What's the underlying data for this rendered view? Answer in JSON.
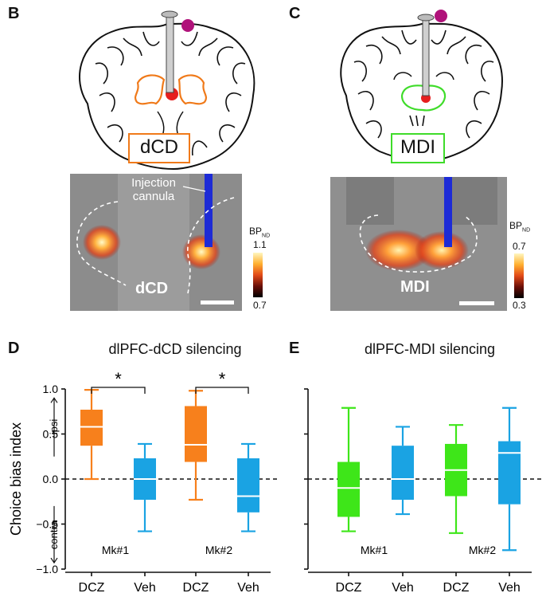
{
  "panels": {
    "B": {
      "letter": "B",
      "region_label": "dCD",
      "annotation": "Injection\ncannula",
      "colorbar": {
        "label": "BP",
        "label_sub": "ND",
        "max": "1.1",
        "min": "0.7"
      },
      "image_region_label": "dCD"
    },
    "C": {
      "letter": "C",
      "region_label": "MDI",
      "colorbar": {
        "label": "BP",
        "label_sub": "ND",
        "max": "0.7",
        "min": "0.3"
      },
      "image_region_label": "MDI"
    },
    "D": {
      "letter": "D",
      "title": "dlPFC-dCD silencing"
    },
    "E": {
      "letter": "E",
      "title": "dlPFC-MDI silencing"
    }
  },
  "colors": {
    "dcd_outline": "#f07a1a",
    "mdi_outline": "#3fdc2a",
    "orange": "#f7801c",
    "blue": "#1aa3e3",
    "green": "#3ee619",
    "cannula_blue": "#1d2bd6",
    "magenta": "#b0127a"
  },
  "chart_data": [
    {
      "type": "box",
      "title": "dlPFC-dCD silencing",
      "ylabel": "Choice bias index",
      "ylim": [
        -1.0,
        1.0
      ],
      "yticks": [
        "1.0",
        "0.5",
        "0.0",
        "−0.5",
        "−1.0"
      ],
      "direction_labels": {
        "up": "ipsi",
        "down": "contra"
      },
      "groups": [
        "Mk#1",
        "Mk#2"
      ],
      "xticklabels": [
        "DCZ",
        "Veh",
        "DCZ",
        "Veh"
      ],
      "significance": [
        "*",
        "*"
      ],
      "boxes": [
        {
          "group": "Mk#1",
          "condition": "DCZ",
          "color": "orange",
          "min": 0.0,
          "q1": 0.37,
          "median": 0.58,
          "q3": 0.77,
          "max": 0.99
        },
        {
          "group": "Mk#1",
          "condition": "Veh",
          "color": "blue",
          "min": -0.58,
          "q1": -0.23,
          "median": 0.0,
          "q3": 0.23,
          "max": 0.39
        },
        {
          "group": "Mk#2",
          "condition": "DCZ",
          "color": "orange",
          "min": -0.23,
          "q1": 0.19,
          "median": 0.38,
          "q3": 0.81,
          "max": 0.98
        },
        {
          "group": "Mk#2",
          "condition": "Veh",
          "color": "blue",
          "min": -0.58,
          "q1": -0.37,
          "median": -0.19,
          "q3": 0.23,
          "max": 0.39
        }
      ]
    },
    {
      "type": "box",
      "title": "dlPFC-MDI silencing",
      "ylim": [
        -1.0,
        1.0
      ],
      "groups": [
        "Mk#1",
        "Mk#2"
      ],
      "xticklabels": [
        "DCZ",
        "Veh",
        "DCZ",
        "Veh"
      ],
      "boxes": [
        {
          "group": "Mk#1",
          "condition": "DCZ",
          "color": "green",
          "min": -0.58,
          "q1": -0.42,
          "median": -0.1,
          "q3": 0.19,
          "max": 0.79
        },
        {
          "group": "Mk#1",
          "condition": "Veh",
          "color": "blue",
          "min": -0.39,
          "q1": -0.23,
          "median": 0.0,
          "q3": 0.37,
          "max": 0.58
        },
        {
          "group": "Mk#2",
          "condition": "DCZ",
          "color": "green",
          "min": -0.6,
          "q1": -0.19,
          "median": 0.1,
          "q3": 0.39,
          "max": 0.6
        },
        {
          "group": "Mk#2",
          "condition": "Veh",
          "color": "blue",
          "min": -0.79,
          "q1": -0.28,
          "median": 0.29,
          "q3": 0.42,
          "max": 0.79
        }
      ]
    }
  ]
}
